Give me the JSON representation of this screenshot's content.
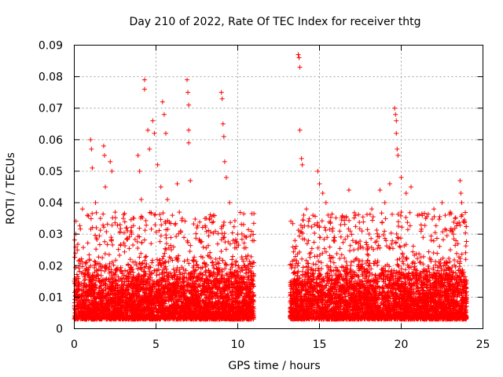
{
  "chart_data": {
    "type": "scatter",
    "title": "Day 210 of 2022, Rate Of TEC Index for receiver thtg",
    "xlabel": "GPS time / hours",
    "ylabel": "ROTI / TECUs",
    "xlim": [
      0,
      25
    ],
    "ylim": [
      0,
      0.09
    ],
    "x_ticks": [
      "0",
      "5",
      "10",
      "15",
      "20",
      "25"
    ],
    "y_ticks": [
      "0",
      "0.01",
      "0.02",
      "0.03",
      "0.04",
      "0.05",
      "0.06",
      "0.07",
      "0.08",
      "0.09"
    ],
    "x_tick_values": [
      0,
      5,
      10,
      15,
      20,
      25
    ],
    "y_tick_values": [
      0,
      0.01,
      0.02,
      0.03,
      0.04,
      0.05,
      0.06,
      0.07,
      0.08,
      0.09
    ],
    "grid": true,
    "marker": "+",
    "color": "#ff0000",
    "series": [
      {
        "segments": [
          {
            "x_range": [
              0,
              11
            ],
            "typical_range": [
              0.003,
              0.025
            ]
          },
          {
            "x_range": [
              13.2,
              24
            ],
            "typical_range": [
              0.003,
              0.025
            ]
          }
        ],
        "peaks": [
          {
            "x": 0.2,
            "y": 0.025
          },
          {
            "x": 0.5,
            "y": 0.038
          },
          {
            "x": 0.8,
            "y": 0.036
          },
          {
            "x": 1.0,
            "y": 0.06
          },
          {
            "x": 1.05,
            "y": 0.057
          },
          {
            "x": 1.1,
            "y": 0.051
          },
          {
            "x": 1.3,
            "y": 0.04
          },
          {
            "x": 1.6,
            "y": 0.035
          },
          {
            "x": 1.8,
            "y": 0.058
          },
          {
            "x": 1.85,
            "y": 0.055
          },
          {
            "x": 1.9,
            "y": 0.045
          },
          {
            "x": 2.2,
            "y": 0.053
          },
          {
            "x": 2.3,
            "y": 0.05
          },
          {
            "x": 2.5,
            "y": 0.037
          },
          {
            "x": 3.0,
            "y": 0.035
          },
          {
            "x": 3.5,
            "y": 0.03
          },
          {
            "x": 3.9,
            "y": 0.055
          },
          {
            "x": 4.0,
            "y": 0.05
          },
          {
            "x": 4.1,
            "y": 0.041
          },
          {
            "x": 4.3,
            "y": 0.079
          },
          {
            "x": 4.3,
            "y": 0.076
          },
          {
            "x": 4.5,
            "y": 0.063
          },
          {
            "x": 4.6,
            "y": 0.057
          },
          {
            "x": 4.8,
            "y": 0.066
          },
          {
            "x": 4.9,
            "y": 0.062
          },
          {
            "x": 5.1,
            "y": 0.052
          },
          {
            "x": 5.3,
            "y": 0.045
          },
          {
            "x": 5.4,
            "y": 0.072
          },
          {
            "x": 5.5,
            "y": 0.068
          },
          {
            "x": 5.6,
            "y": 0.062
          },
          {
            "x": 5.7,
            "y": 0.041
          },
          {
            "x": 6.0,
            "y": 0.036
          },
          {
            "x": 6.3,
            "y": 0.046
          },
          {
            "x": 6.6,
            "y": 0.035
          },
          {
            "x": 6.9,
            "y": 0.079
          },
          {
            "x": 6.95,
            "y": 0.075
          },
          {
            "x": 7.0,
            "y": 0.071
          },
          {
            "x": 7.0,
            "y": 0.063
          },
          {
            "x": 7.0,
            "y": 0.059
          },
          {
            "x": 7.1,
            "y": 0.047
          },
          {
            "x": 7.5,
            "y": 0.032
          },
          {
            "x": 8.0,
            "y": 0.035
          },
          {
            "x": 8.5,
            "y": 0.036
          },
          {
            "x": 9.0,
            "y": 0.075
          },
          {
            "x": 9.05,
            "y": 0.073
          },
          {
            "x": 9.1,
            "y": 0.065
          },
          {
            "x": 9.15,
            "y": 0.061
          },
          {
            "x": 9.2,
            "y": 0.053
          },
          {
            "x": 9.3,
            "y": 0.048
          },
          {
            "x": 9.5,
            "y": 0.04
          },
          {
            "x": 10.0,
            "y": 0.03
          },
          {
            "x": 10.5,
            "y": 0.029
          },
          {
            "x": 10.9,
            "y": 0.028
          },
          {
            "x": 13.5,
            "y": 0.028
          },
          {
            "x": 13.7,
            "y": 0.087
          },
          {
            "x": 13.75,
            "y": 0.086
          },
          {
            "x": 13.8,
            "y": 0.083
          },
          {
            "x": 13.8,
            "y": 0.063
          },
          {
            "x": 13.9,
            "y": 0.054
          },
          {
            "x": 13.95,
            "y": 0.052
          },
          {
            "x": 14.2,
            "y": 0.038
          },
          {
            "x": 14.6,
            "y": 0.036
          },
          {
            "x": 14.9,
            "y": 0.05
          },
          {
            "x": 15.0,
            "y": 0.046
          },
          {
            "x": 15.2,
            "y": 0.043
          },
          {
            "x": 15.4,
            "y": 0.04
          },
          {
            "x": 15.8,
            "y": 0.031
          },
          {
            "x": 16.3,
            "y": 0.033
          },
          {
            "x": 16.8,
            "y": 0.044
          },
          {
            "x": 17.2,
            "y": 0.036
          },
          {
            "x": 17.6,
            "y": 0.031
          },
          {
            "x": 18.2,
            "y": 0.038
          },
          {
            "x": 18.7,
            "y": 0.044
          },
          {
            "x": 19.0,
            "y": 0.04
          },
          {
            "x": 19.3,
            "y": 0.046
          },
          {
            "x": 19.6,
            "y": 0.07
          },
          {
            "x": 19.65,
            "y": 0.068
          },
          {
            "x": 19.7,
            "y": 0.066
          },
          {
            "x": 19.7,
            "y": 0.062
          },
          {
            "x": 19.75,
            "y": 0.057
          },
          {
            "x": 19.8,
            "y": 0.055
          },
          {
            "x": 20.0,
            "y": 0.048
          },
          {
            "x": 20.3,
            "y": 0.043
          },
          {
            "x": 20.6,
            "y": 0.045
          },
          {
            "x": 21.0,
            "y": 0.036
          },
          {
            "x": 21.5,
            "y": 0.035
          },
          {
            "x": 22.0,
            "y": 0.038
          },
          {
            "x": 22.5,
            "y": 0.04
          },
          {
            "x": 23.0,
            "y": 0.037
          },
          {
            "x": 23.3,
            "y": 0.035
          },
          {
            "x": 23.6,
            "y": 0.047
          },
          {
            "x": 23.65,
            "y": 0.043
          },
          {
            "x": 23.7,
            "y": 0.04
          },
          {
            "x": 23.8,
            "y": 0.034
          }
        ]
      }
    ]
  }
}
